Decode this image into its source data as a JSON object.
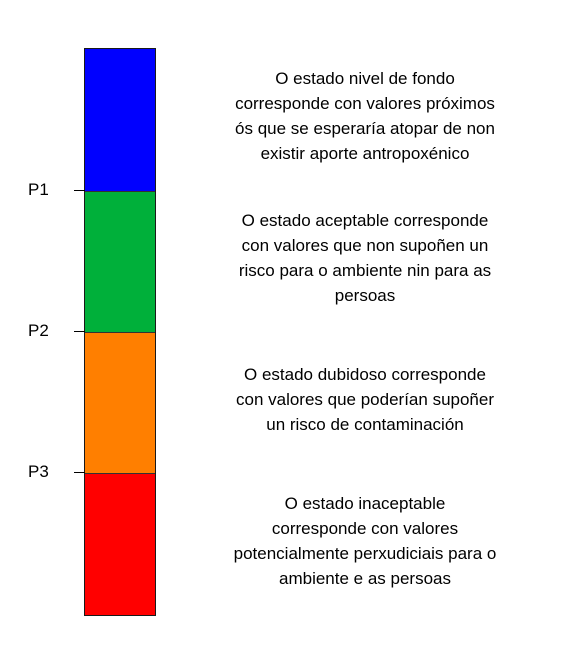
{
  "scale": {
    "bands": [
      {
        "id": "fondo",
        "color": "#0000ff"
      },
      {
        "id": "aceptable",
        "color": "#00b03a"
      },
      {
        "id": "dubidoso",
        "color": "#ff7f00"
      },
      {
        "id": "inaceptable",
        "color": "#ff0000"
      }
    ],
    "markers": [
      "P1",
      "P2",
      "P3"
    ]
  },
  "descriptions": [
    {
      "lines": [
        "O estado nivel de fondo",
        "corresponde con valores próximos",
        "ós que se esperaría atopar de non",
        "existir aporte antropoxénico"
      ]
    },
    {
      "lines": [
        "O estado aceptable corresponde",
        "con valores que non supoñen un",
        "risco para o ambiente nin para as",
        "persoas"
      ]
    },
    {
      "lines": [
        "O estado dubidoso corresponde",
        "con valores que poderían supoñer",
        "un risco de contaminación"
      ]
    },
    {
      "lines": [
        "O estado inaceptable",
        "corresponde con valores",
        "potencialmente perxudiciais para o",
        "ambiente e as persoas"
      ]
    }
  ]
}
